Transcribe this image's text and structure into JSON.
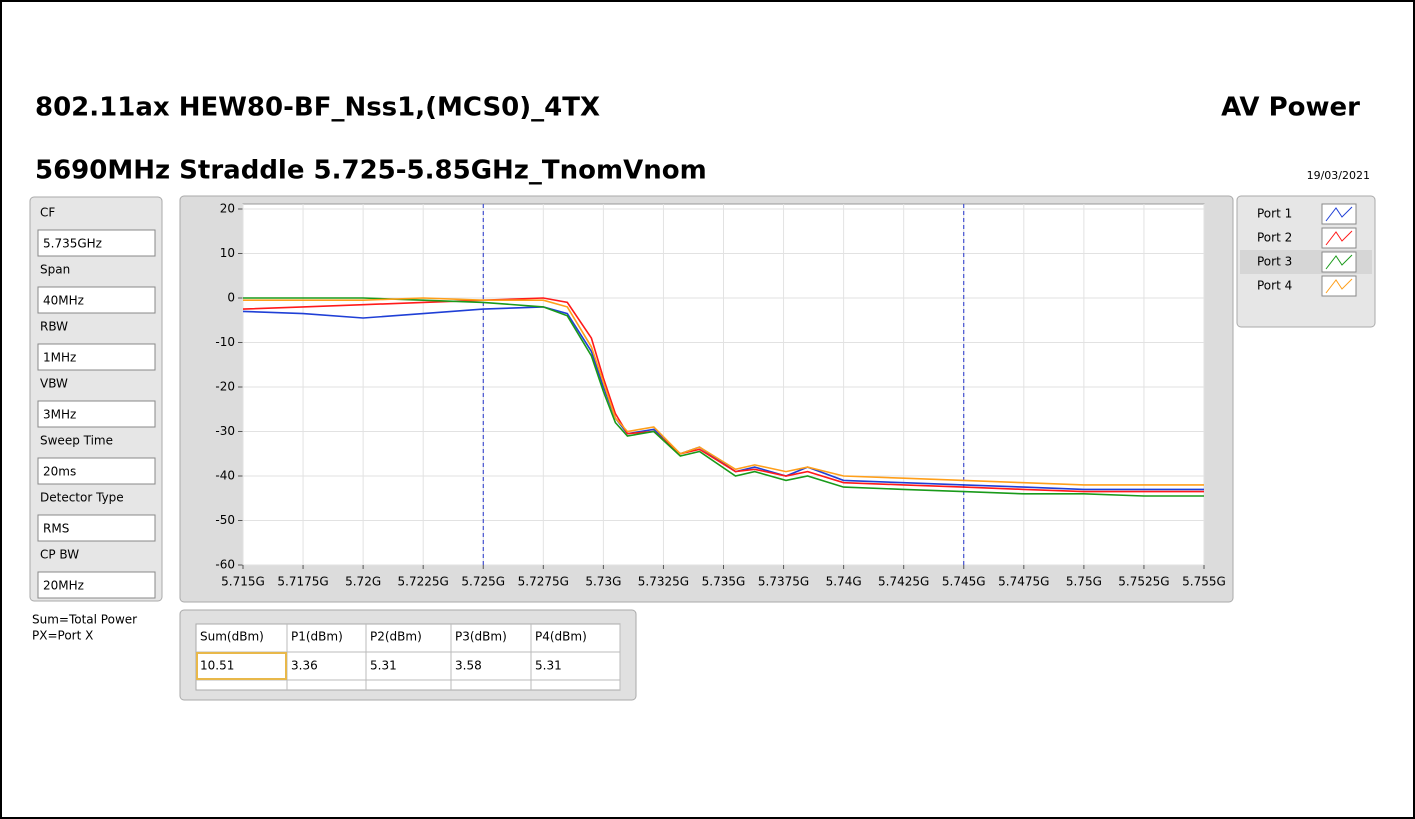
{
  "header": {
    "title": "802.11ax HEW80-BF_Nss1,(MCS0)_4TX",
    "subtitle": "5690MHz Straddle 5.725-5.85GHz_TnomVnom",
    "mode": "AV Power",
    "date": "19/03/2021"
  },
  "settings": [
    {
      "label": "CF",
      "value": "5.735GHz"
    },
    {
      "label": "Span",
      "value": "40MHz"
    },
    {
      "label": "RBW",
      "value": "1MHz"
    },
    {
      "label": "VBW",
      "value": "3MHz"
    },
    {
      "label": "Sweep Time",
      "value": "20ms"
    },
    {
      "label": "Detector Type",
      "value": "RMS"
    },
    {
      "label": "CP BW",
      "value": "20MHz"
    }
  ],
  "notes": [
    "Sum=Total Power",
    "PX=Port X"
  ],
  "table": {
    "headers": [
      "Sum(dBm)",
      "P1(dBm)",
      "P2(dBm)",
      "P3(dBm)",
      "P4(dBm)"
    ],
    "rows": [
      [
        "10.51",
        "3.36",
        "5.31",
        "3.58",
        "5.31"
      ]
    ]
  },
  "chart_data": {
    "type": "line",
    "x": [
      5.715,
      5.7175,
      5.72,
      5.7225,
      5.725,
      5.7275,
      5.7285,
      5.7295,
      5.73,
      5.7305,
      5.731,
      5.7321,
      5.7332,
      5.734,
      5.7355,
      5.7363,
      5.7376,
      5.7385,
      5.74,
      5.7425,
      5.745,
      5.7475,
      5.75,
      5.7525,
      5.755
    ],
    "series": [
      {
        "name": "Port 1",
        "color": "#1f3fd6",
        "values": [
          -3,
          -3.5,
          -4.5,
          -3.5,
          -2.5,
          -2,
          -3.5,
          -12,
          -20,
          -27,
          -30.5,
          -29.5,
          -35,
          -33.5,
          -39,
          -38,
          -40,
          -38,
          -41,
          -41.5,
          -42,
          -42.5,
          -43,
          -43,
          -43
        ]
      },
      {
        "name": "Port 2",
        "color": "#ff1a1a",
        "values": [
          -2.5,
          -2,
          -1.5,
          -1,
          -0.5,
          0,
          -1,
          -9,
          -18,
          -26,
          -30.5,
          -30,
          -35,
          -34,
          -39,
          -38.5,
          -40,
          -39,
          -41.5,
          -42,
          -42.5,
          -43,
          -43.5,
          -43.5,
          -43.5
        ]
      },
      {
        "name": "Port 3",
        "color": "#1a9a1a",
        "values": [
          0,
          0,
          0,
          -0.5,
          -1,
          -2,
          -4,
          -13,
          -21,
          -28,
          -31,
          -30,
          -35.5,
          -34.5,
          -40,
          -39,
          -41,
          -40,
          -42.5,
          -43,
          -43.5,
          -44,
          -44,
          -44.5,
          -44.5
        ]
      },
      {
        "name": "Port 4",
        "color": "#ff9f1a",
        "values": [
          -0.5,
          -0.5,
          -0.5,
          0,
          -0.5,
          -0.5,
          -2,
          -11,
          -19,
          -27,
          -30,
          -29,
          -35,
          -33.5,
          -38.5,
          -37.5,
          -39,
          -38,
          -40,
          -40.5,
          -41,
          -41.5,
          -42,
          -42,
          -42
        ]
      }
    ],
    "xlim": [
      5.715,
      5.755
    ],
    "xticks": [
      {
        "value": 5.715,
        "label": "5.715G"
      },
      {
        "value": 5.7175,
        "label": "5.7175G"
      },
      {
        "value": 5.72,
        "label": "5.72G"
      },
      {
        "value": 5.7225,
        "label": "5.7225G"
      },
      {
        "value": 5.725,
        "label": "5.725G"
      },
      {
        "value": 5.7275,
        "label": "5.7275G"
      },
      {
        "value": 5.73,
        "label": "5.73G"
      },
      {
        "value": 5.7325,
        "label": "5.7325G"
      },
      {
        "value": 5.735,
        "label": "5.735G"
      },
      {
        "value": 5.7375,
        "label": "5.7375G"
      },
      {
        "value": 5.74,
        "label": "5.74G"
      },
      {
        "value": 5.7425,
        "label": "5.7425G"
      },
      {
        "value": 5.745,
        "label": "5.745G"
      },
      {
        "value": 5.7475,
        "label": "5.7475G"
      },
      {
        "value": 5.75,
        "label": "5.75G"
      },
      {
        "value": 5.7525,
        "label": "5.7525G"
      },
      {
        "value": 5.755,
        "label": "5.755G"
      }
    ],
    "ylim": [
      -60,
      20
    ],
    "yticks": [
      20,
      10,
      0,
      -10,
      -20,
      -30,
      -40,
      -50,
      -60
    ],
    "grid": true,
    "limit_lines": [
      5.725,
      5.745
    ],
    "limit_color": "#2233cc"
  }
}
